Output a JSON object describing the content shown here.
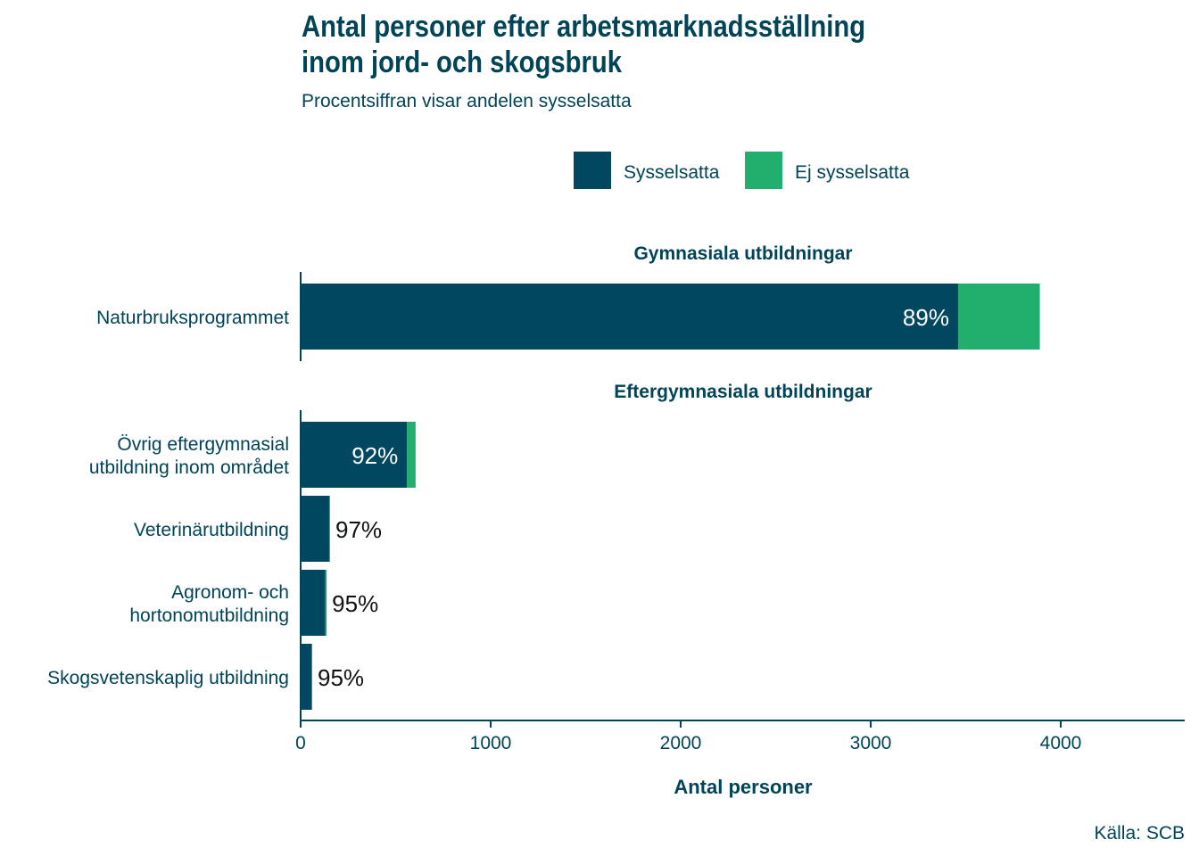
{
  "title": "Antal personer efter arbetsmarknadsställning inom jord- och skogsbruk",
  "subtitle": "Procentsiffran visar andelen sysselsatta",
  "source": "Källa: SCB",
  "colors": {
    "employed": "#00475F",
    "not_employed": "#22AF6E",
    "text": "#004457"
  },
  "chart_data": {
    "type": "bar",
    "orientation": "horizontal",
    "stacked": true,
    "xlabel": "Antal personer",
    "xlim": [
      0,
      4650
    ],
    "x_ticks": [
      "0",
      "1000",
      "2000",
      "3000",
      "4000"
    ],
    "legend": {
      "position": "top",
      "entries": [
        "Sysselsatta",
        "Ej sysselsatta"
      ]
    },
    "grid": false,
    "panels": [
      {
        "title": "Gymnasiala utbildningar",
        "categories": [
          "Naturbruksprogrammet"
        ],
        "series": [
          {
            "name": "Sysselsatta",
            "values": [
              3460
            ]
          },
          {
            "name": "Ej sysselsatta",
            "values": [
              430
            ]
          }
        ],
        "labels": [
          "89%"
        ]
      },
      {
        "title": "Eftergymnasiala utbildningar",
        "categories": [
          [
            "Övrig eftergymnasial",
            "utbildning inom området"
          ],
          [
            "Veterinärutbildning"
          ],
          [
            "Agronom- och",
            "hortonomutbildning"
          ],
          [
            "Skogsvetenskaplig utbildning"
          ]
        ],
        "series": [
          {
            "name": "Sysselsatta",
            "values": [
              560,
              150,
              130,
              58
            ]
          },
          {
            "name": "Ej sysselsatta",
            "values": [
              45,
              5,
              7,
              3
            ]
          }
        ],
        "labels": [
          "92%",
          "97%",
          "95%",
          "95%"
        ]
      }
    ]
  }
}
